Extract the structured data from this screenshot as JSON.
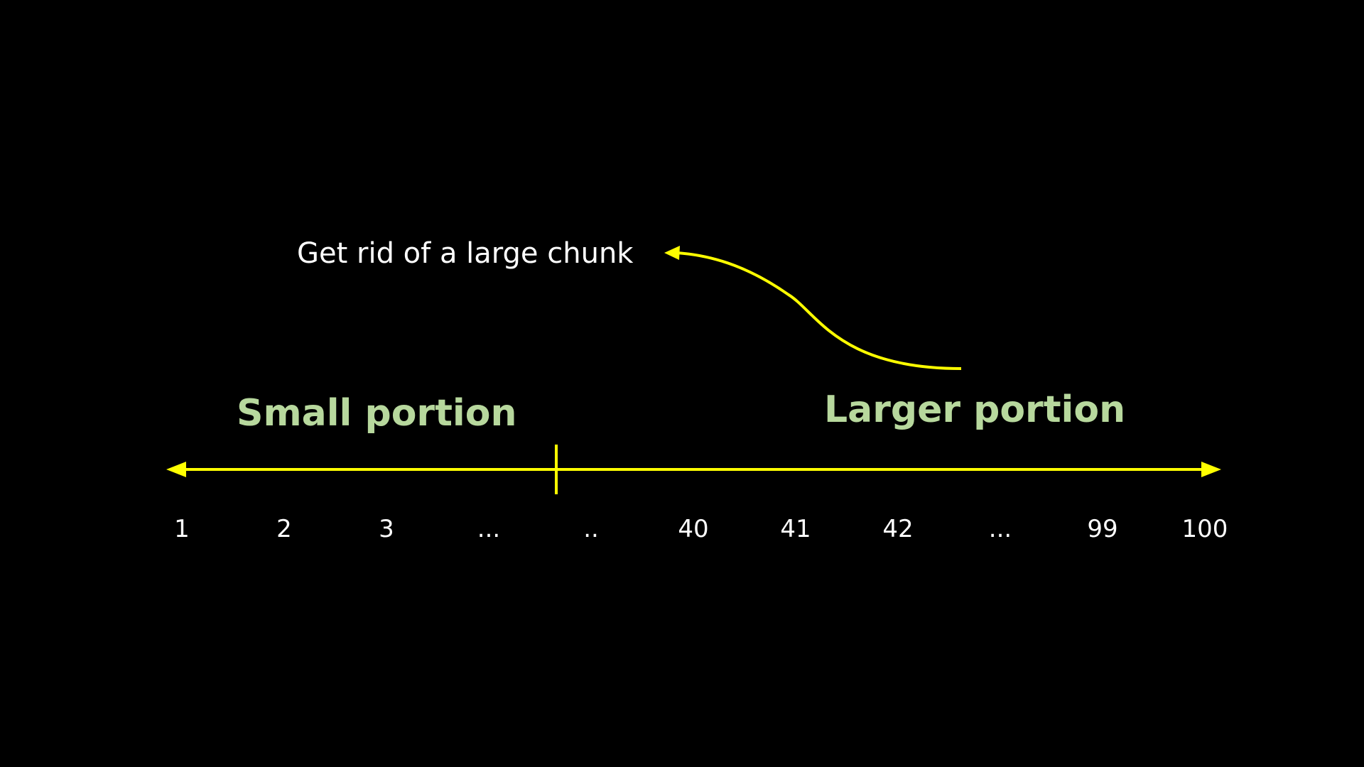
{
  "colors": {
    "background": "#000000",
    "line": "#ffff00",
    "portion_label": "#b7d89d",
    "text": "#ffffff"
  },
  "annotation": {
    "text": "Get rid of a large chunk"
  },
  "portions": {
    "small": "Small portion",
    "larger": "Larger portion"
  },
  "number_line": {
    "labels": [
      "1",
      "2",
      "3",
      "...",
      "..",
      "40",
      "41",
      "42",
      "...",
      "99",
      "100"
    ]
  }
}
